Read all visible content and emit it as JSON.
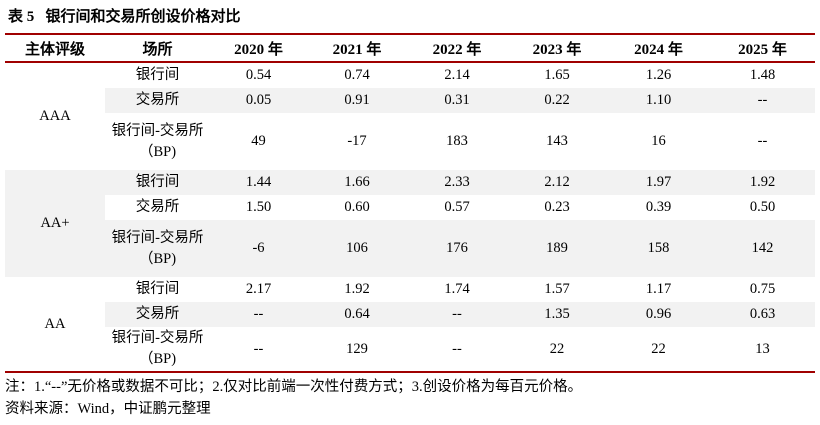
{
  "title": "表 5   银行间和交易所创设价格对比",
  "colors": {
    "rule": "#a00000",
    "row_shade": "#f2f2f2"
  },
  "table": {
    "headers": [
      "主体评级",
      "场所",
      "2020 年",
      "2021 年",
      "2022 年",
      "2023 年",
      "2024 年",
      "2025 年"
    ],
    "groups": [
      {
        "rating": "AAA",
        "rows": [
          {
            "venue": [
              "银行间"
            ],
            "values": [
              "0.54",
              "0.74",
              "2.14",
              "1.65",
              "1.26",
              "1.48"
            ]
          },
          {
            "venue": [
              "交易所"
            ],
            "values": [
              "0.05",
              "0.91",
              "0.31",
              "0.22",
              "1.10",
              "--"
            ]
          },
          {
            "venue": [
              "银行间-交易所",
              "（BP)"
            ],
            "values": [
              "49",
              "-17",
              "183",
              "143",
              "16",
              "--"
            ]
          }
        ]
      },
      {
        "rating": "AA+",
        "rows": [
          {
            "venue": [
              "银行间"
            ],
            "values": [
              "1.44",
              "1.66",
              "2.33",
              "2.12",
              "1.97",
              "1.92"
            ]
          },
          {
            "venue": [
              "交易所"
            ],
            "values": [
              "1.50",
              "0.60",
              "0.57",
              "0.23",
              "0.39",
              "0.50"
            ]
          },
          {
            "venue": [
              "银行间-交易所",
              "（BP)"
            ],
            "values": [
              "-6",
              "106",
              "176",
              "189",
              "158",
              "142"
            ]
          }
        ]
      },
      {
        "rating": "AA",
        "rows": [
          {
            "venue": [
              "银行间"
            ],
            "values": [
              "2.17",
              "1.92",
              "1.74",
              "1.57",
              "1.17",
              "0.75"
            ]
          },
          {
            "venue": [
              "交易所"
            ],
            "values": [
              "--",
              "0.64",
              "--",
              "1.35",
              "0.96",
              "0.63"
            ]
          },
          {
            "venue": [
              "银行间-交易所",
              "（BP)"
            ],
            "values": [
              "--",
              "129",
              "--",
              "22",
              "22",
              "13"
            ]
          }
        ]
      }
    ]
  },
  "notes": "注：1.“--”无价格或数据不可比；2.仅对比前端一次性付费方式；3.创设价格为每百元价格。",
  "source": "资料来源：Wind，中证鹏元整理"
}
